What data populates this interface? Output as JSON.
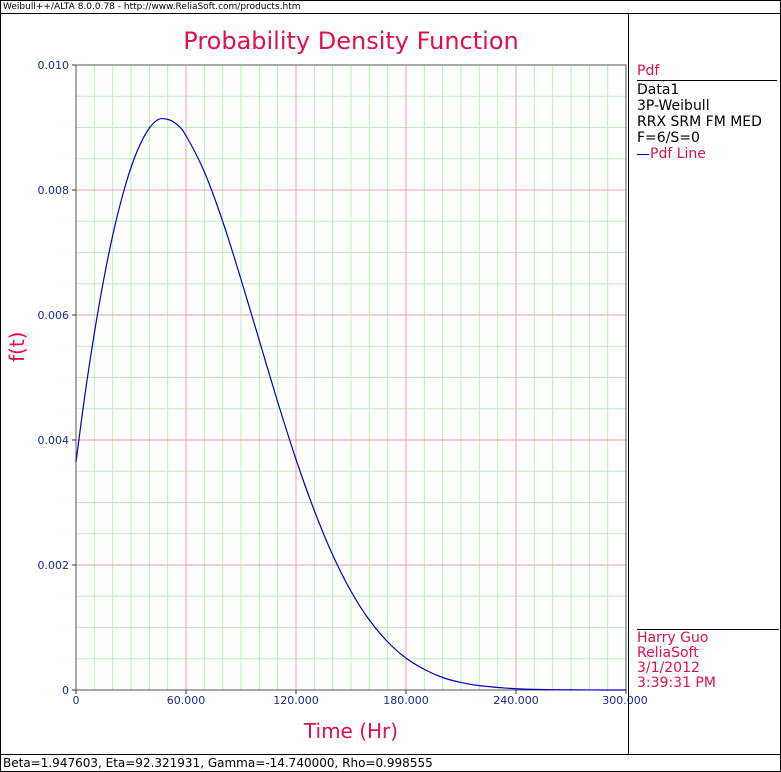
{
  "header": {
    "app_text": "Weibull++/ALTA 8.0.0.78 - http://www.ReliaSoft.com/products.htm"
  },
  "chart_data": {
    "type": "line",
    "title": "Probability Density Function",
    "xlabel": "Time (Hr)",
    "ylabel": "f(t)",
    "xlim": [
      0,
      300
    ],
    "ylim": [
      0,
      0.01
    ],
    "x_ticks": [
      "0",
      "60.000",
      "120.000",
      "180.000",
      "240.000",
      "300.000"
    ],
    "y_ticks": [
      "0",
      "0.002",
      "0.004",
      "0.006",
      "0.008",
      "0.010"
    ],
    "grid": true,
    "series": [
      {
        "name": "Pdf Line",
        "color": "#0000c0",
        "x": [
          0,
          5,
          10,
          15,
          20,
          25,
          30,
          35,
          40,
          45,
          50,
          55,
          60,
          70,
          80,
          90,
          100,
          110,
          120,
          130,
          140,
          150,
          160,
          170,
          180,
          190,
          200,
          210,
          220,
          240,
          260,
          280,
          300
        ],
        "y": [
          0.00365,
          0.00475,
          0.00571,
          0.00655,
          0.00727,
          0.00787,
          0.00836,
          0.00873,
          0.00899,
          0.00913,
          0.00913,
          0.00905,
          0.00887,
          0.00829,
          0.0075,
          0.00657,
          0.00559,
          0.00461,
          0.00369,
          0.00287,
          0.00216,
          0.00158,
          0.00112,
          0.00077,
          0.00051,
          0.00033,
          0.0002,
          0.00012,
          7e-05,
          2e-05,
          5e-06,
          1e-06,
          0.0
        ]
      }
    ]
  },
  "legend": {
    "header": "Pdf",
    "lines": [
      "Data1",
      "3P-Weibull",
      "RRX SRM FM MED",
      "F=6/S=0"
    ],
    "series_label": "Pdf Line"
  },
  "info": {
    "user": "Harry Guo",
    "company": "ReliaSoft",
    "date": "3/1/2012",
    "time": "3:39:31 PM"
  },
  "footer": {
    "params": "Beta=1.947603, Eta=92.321931, Gamma=-14.740000, Rho=0.998555"
  },
  "colors": {
    "accent": "#e0104a",
    "curve": "#0000c0",
    "major_grid": "#f0a0a8",
    "minor_grid": "#b8f0b8",
    "axis_text": "#1a2a8a"
  }
}
